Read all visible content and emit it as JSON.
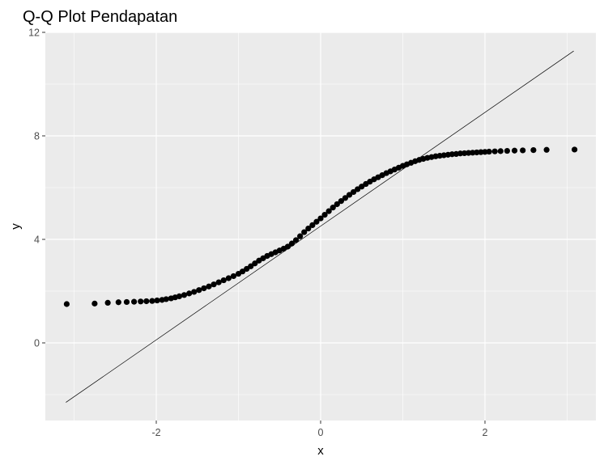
{
  "chart_data": {
    "type": "scatter",
    "title": "Q-Q Plot Pendapatan",
    "xlabel": "x",
    "ylabel": "y",
    "xlim": [
      -3.35,
      3.35
    ],
    "ylim": [
      -3.0,
      12.0
    ],
    "x_ticks": [
      -2,
      0,
      2
    ],
    "x_tick_labels": [
      "-2",
      "0",
      "2"
    ],
    "y_ticks": [
      0,
      4,
      8,
      12
    ],
    "y_tick_labels": [
      "0",
      "4",
      "8",
      "12"
    ],
    "grid": true,
    "legend": "none",
    "reference_line": {
      "x": [
        -3.1,
        3.08
      ],
      "y": [
        -2.3,
        11.28
      ]
    },
    "points": {
      "x": [
        -3.09,
        -2.75,
        -2.59,
        -2.46,
        -2.36,
        -2.27,
        -2.19,
        -2.12,
        -2.05,
        -1.99,
        -1.93,
        -1.88,
        -1.82,
        -1.77,
        -1.72,
        -1.66,
        -1.6,
        -1.54,
        -1.48,
        -1.42,
        -1.36,
        -1.3,
        -1.24,
        -1.18,
        -1.12,
        -1.06,
        -1.0,
        -0.95,
        -0.9,
        -0.85,
        -0.8,
        -0.75,
        -0.7,
        -0.65,
        -0.6,
        -0.55,
        -0.5,
        -0.45,
        -0.4,
        -0.35,
        -0.3,
        -0.25,
        -0.2,
        -0.15,
        -0.1,
        -0.05,
        0.0,
        0.05,
        0.1,
        0.15,
        0.2,
        0.25,
        0.3,
        0.35,
        0.4,
        0.45,
        0.5,
        0.55,
        0.6,
        0.65,
        0.7,
        0.75,
        0.8,
        0.85,
        0.9,
        0.95,
        1.0,
        1.05,
        1.1,
        1.15,
        1.2,
        1.25,
        1.3,
        1.35,
        1.4,
        1.45,
        1.5,
        1.55,
        1.6,
        1.65,
        1.7,
        1.75,
        1.8,
        1.85,
        1.9,
        1.95,
        2.0,
        2.05,
        2.12,
        2.19,
        2.27,
        2.36,
        2.46,
        2.59,
        2.75,
        3.09
      ],
      "y": [
        1.5,
        1.52,
        1.55,
        1.57,
        1.58,
        1.59,
        1.6,
        1.61,
        1.62,
        1.64,
        1.66,
        1.69,
        1.72,
        1.76,
        1.8,
        1.85,
        1.91,
        1.97,
        2.04,
        2.11,
        2.18,
        2.26,
        2.34,
        2.42,
        2.5,
        2.58,
        2.67,
        2.76,
        2.86,
        2.96,
        3.07,
        3.18,
        3.27,
        3.36,
        3.43,
        3.5,
        3.57,
        3.64,
        3.72,
        3.84,
        3.97,
        4.12,
        4.28,
        4.42,
        4.55,
        4.68,
        4.81,
        4.95,
        5.09,
        5.23,
        5.36,
        5.48,
        5.6,
        5.72,
        5.83,
        5.94,
        6.04,
        6.14,
        6.23,
        6.32,
        6.4,
        6.48,
        6.56,
        6.63,
        6.7,
        6.77,
        6.84,
        6.9,
        6.96,
        7.02,
        7.07,
        7.11,
        7.15,
        7.18,
        7.21,
        7.23,
        7.25,
        7.27,
        7.29,
        7.3,
        7.32,
        7.33,
        7.34,
        7.35,
        7.36,
        7.37,
        7.38,
        7.39,
        7.4,
        7.41,
        7.42,
        7.43,
        7.44,
        7.45,
        7.46,
        7.47
      ]
    }
  }
}
